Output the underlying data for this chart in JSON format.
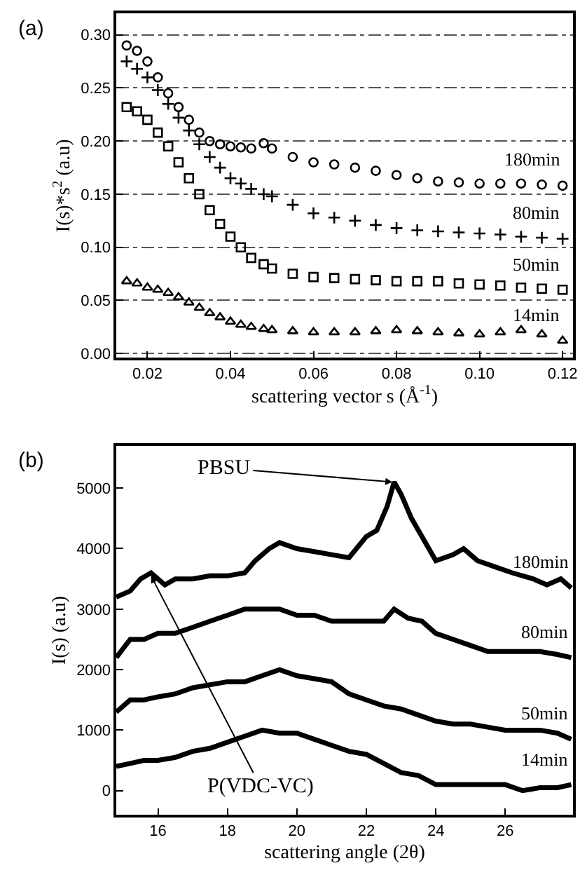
{
  "chart_data": [
    {
      "type": "scatter",
      "title": "(a)",
      "xlabel": "scattering vector s (Å$^{-1}$)",
      "ylabel": "I(s)*s$^{2}$ (a.u)",
      "xlim": [
        0.0125,
        0.1225
      ],
      "ylim": [
        -0.004,
        0.32
      ],
      "xticks": [
        {
          "value": 0.02,
          "label": "0.02"
        },
        {
          "value": 0.04,
          "label": "0.04"
        },
        {
          "value": 0.06,
          "label": "0.06"
        },
        {
          "value": 0.08,
          "label": "0.08"
        },
        {
          "value": 0.1,
          "label": "0.10"
        },
        {
          "value": 0.12,
          "label": "0.12"
        }
      ],
      "yticks": [
        {
          "value": 0,
          "label": "0.00"
        },
        {
          "value": 0.05,
          "label": "0.05"
        },
        {
          "value": 0.1,
          "label": "0.10"
        },
        {
          "value": 0.15,
          "label": "0.15"
        },
        {
          "value": 0.2,
          "label": "0.20"
        },
        {
          "value": 0.25,
          "label": "0.25"
        },
        {
          "value": 0.3,
          "label": "0.30"
        }
      ],
      "grid": "y",
      "x": [
        0.015,
        0.0175,
        0.02,
        0.0225,
        0.025,
        0.0275,
        0.03,
        0.0325,
        0.035,
        0.0375,
        0.04,
        0.0425,
        0.045,
        0.048,
        0.05,
        0.055,
        0.06,
        0.065,
        0.07,
        0.075,
        0.08,
        0.085,
        0.09,
        0.095,
        0.1,
        0.105,
        0.11,
        0.115,
        0.12
      ],
      "series": [
        {
          "name": "180min",
          "color": "#000000",
          "marker": "circle",
          "values": [
            0.29,
            0.285,
            0.275,
            0.26,
            0.245,
            0.232,
            0.22,
            0.208,
            0.2,
            0.197,
            0.195,
            0.194,
            0.193,
            0.198,
            0.193,
            0.185,
            0.18,
            0.178,
            0.175,
            0.172,
            0.168,
            0.165,
            0.162,
            0.161,
            0.16,
            0.16,
            0.16,
            0.159,
            0.158
          ]
        },
        {
          "name": "80min",
          "color": "#000000",
          "marker": "cross",
          "values": [
            0.275,
            0.268,
            0.26,
            0.248,
            0.235,
            0.222,
            0.21,
            0.197,
            0.185,
            0.175,
            0.165,
            0.16,
            0.155,
            0.15,
            0.148,
            0.14,
            0.132,
            0.128,
            0.125,
            0.121,
            0.118,
            0.116,
            0.115,
            0.114,
            0.113,
            0.112,
            0.11,
            0.109,
            0.108
          ]
        },
        {
          "name": "50min",
          "color": "#000000",
          "marker": "square",
          "values": [
            0.232,
            0.228,
            0.22,
            0.208,
            0.195,
            0.18,
            0.165,
            0.15,
            0.135,
            0.122,
            0.11,
            0.1,
            0.09,
            0.084,
            0.08,
            0.075,
            0.072,
            0.071,
            0.07,
            0.069,
            0.068,
            0.068,
            0.068,
            0.066,
            0.065,
            0.064,
            0.062,
            0.061,
            0.06
          ]
        },
        {
          "name": "14min",
          "color": "#000000",
          "marker": "triangle",
          "values": [
            0.068,
            0.066,
            0.062,
            0.06,
            0.057,
            0.053,
            0.048,
            0.043,
            0.038,
            0.034,
            0.03,
            0.027,
            0.025,
            0.023,
            0.022,
            0.021,
            0.02,
            0.02,
            0.02,
            0.021,
            0.022,
            0.021,
            0.02,
            0.019,
            0.018,
            0.02,
            0.022,
            0.018,
            0.012
          ]
        }
      ]
    },
    {
      "type": "line",
      "title": "(b)",
      "xlabel": "scattering angle (2θ)",
      "ylabel": "I(s) (a.u)",
      "xlim": [
        14.8,
        27.95
      ],
      "ylim": [
        -400,
        5700
      ],
      "xticks": [
        16,
        18,
        20,
        22,
        24,
        26
      ],
      "yticks": [
        0,
        1000,
        2000,
        3000,
        4000,
        5000
      ],
      "grid": false,
      "line_style": "solid",
      "annotations": [
        {
          "text": "PBSU",
          "x": 22.75,
          "y": 5100
        },
        {
          "text": "P(VDC-VC)",
          "x": 15.8,
          "y": 3550
        }
      ],
      "series": [
        {
          "name": "180min",
          "color": "#000000",
          "x": [
            14.8,
            15.2,
            15.5,
            15.8,
            16.2,
            16.5,
            17,
            17.5,
            18,
            18.5,
            18.8,
            19.2,
            19.5,
            20,
            20.5,
            21,
            21.5,
            22,
            22.3,
            22.6,
            22.8,
            23,
            23.3,
            23.6,
            24,
            24.5,
            24.8,
            25.2,
            25.7,
            26.2,
            26.8,
            27.2,
            27.6,
            27.9
          ],
          "values": [
            3200,
            3300,
            3500,
            3600,
            3400,
            3500,
            3500,
            3550,
            3550,
            3600,
            3800,
            4000,
            4100,
            4000,
            3950,
            3900,
            3850,
            4200,
            4300,
            4700,
            5100,
            4900,
            4500,
            4200,
            3800,
            3900,
            4000,
            3800,
            3700,
            3600,
            3500,
            3400,
            3500,
            3350
          ]
        },
        {
          "name": "80min",
          "color": "#000000",
          "x": [
            14.8,
            15.2,
            15.6,
            16,
            16.5,
            17,
            17.5,
            18,
            18.5,
            19,
            19.5,
            20,
            20.5,
            21,
            21.5,
            22,
            22.5,
            22.8,
            23.2,
            23.6,
            24,
            24.5,
            25,
            25.5,
            26,
            26.5,
            27,
            27.5,
            27.9
          ],
          "values": [
            2200,
            2500,
            2500,
            2600,
            2600,
            2700,
            2800,
            2900,
            3000,
            3000,
            3000,
            2900,
            2900,
            2800,
            2800,
            2800,
            2800,
            3000,
            2850,
            2800,
            2600,
            2500,
            2400,
            2300,
            2300,
            2300,
            2300,
            2250,
            2200
          ]
        },
        {
          "name": "50min",
          "color": "#000000",
          "x": [
            14.8,
            15.2,
            15.6,
            16,
            16.5,
            17,
            17.5,
            18,
            18.5,
            19,
            19.5,
            20,
            20.5,
            21,
            21.5,
            22,
            22.5,
            23,
            23.5,
            24,
            24.5,
            25,
            25.5,
            26,
            26.5,
            27,
            27.5,
            27.9
          ],
          "values": [
            1300,
            1500,
            1500,
            1550,
            1600,
            1700,
            1750,
            1800,
            1800,
            1900,
            2000,
            1900,
            1850,
            1800,
            1600,
            1500,
            1400,
            1350,
            1250,
            1150,
            1100,
            1100,
            1050,
            1000,
            1000,
            1000,
            950,
            850
          ]
        },
        {
          "name": "14min",
          "color": "#000000",
          "x": [
            14.8,
            15.2,
            15.6,
            16,
            16.5,
            17,
            17.5,
            18,
            18.5,
            19,
            19.5,
            20,
            20.5,
            21,
            21.5,
            22,
            22.5,
            23,
            23.5,
            24,
            24.5,
            25,
            25.5,
            26,
            26.5,
            27,
            27.5,
            27.9
          ],
          "values": [
            400,
            450,
            500,
            500,
            550,
            650,
            700,
            800,
            900,
            1000,
            950,
            950,
            850,
            750,
            650,
            600,
            450,
            300,
            250,
            100,
            100,
            100,
            100,
            100,
            0,
            50,
            50,
            100
          ]
        }
      ]
    }
  ]
}
